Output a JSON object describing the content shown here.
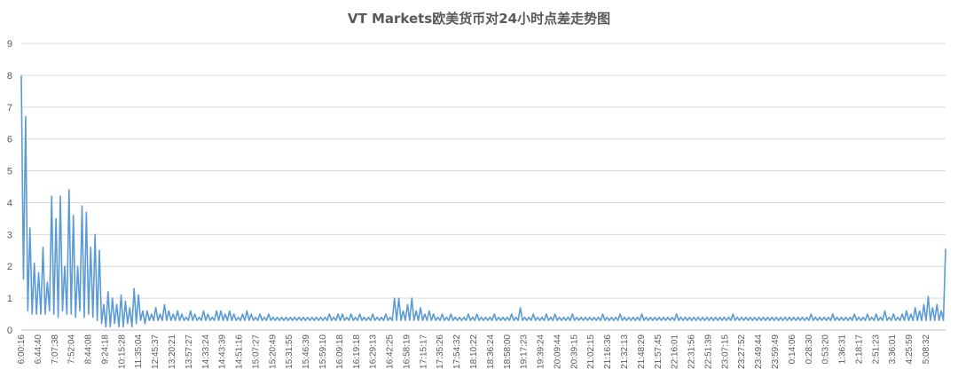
{
  "chart_data": {
    "type": "line",
    "title": "VT Markets欧美货币对24小时点差走势图",
    "xlabel": "",
    "ylabel": "",
    "ylim": [
      0,
      9
    ],
    "y_ticks": [
      0,
      1,
      2,
      3,
      4,
      5,
      6,
      7,
      8,
      9
    ],
    "grid": "horizontal",
    "legend": "none",
    "x_tick_labels": [
      "6:00:16",
      "6:44:40",
      "7:07:38",
      "7:52:04",
      "8:44:08",
      "9:24:18",
      "10:15:28",
      "11:35:04",
      "12:45:37",
      "13:20:21",
      "13:57:27",
      "14:33:24",
      "14:43:39",
      "14:51:16",
      "15:07:27",
      "15:20:49",
      "15:31:55",
      "15:46:39",
      "15:59:10",
      "16:09:18",
      "16:19:18",
      "16:29:13",
      "16:42:25",
      "16:58:19",
      "17:15:17",
      "17:35:26",
      "17:54:32",
      "18:10:22",
      "18:36:24",
      "18:58:00",
      "19:17:23",
      "19:39:24",
      "20:09:44",
      "20:39:15",
      "21:02:15",
      "21:16:36",
      "21:32:13",
      "21:48:29",
      "21:57:45",
      "22:16:01",
      "22:31:56",
      "22:51:39",
      "23:07:15",
      "23:27:52",
      "23:49:44",
      "23:59:49",
      "0:14:06",
      "0:28:30",
      "0:53:20",
      "1:36:31",
      "2:18:17",
      "2:51:23",
      "3:36:01",
      "4:25:59",
      "5:08:32"
    ],
    "series": [
      {
        "color": "#5B9BD5",
        "values": [
          8.0,
          1.6,
          6.7,
          0.6,
          3.2,
          0.5,
          2.1,
          0.5,
          1.8,
          0.5,
          2.6,
          0.5,
          1.5,
          0.6,
          4.2,
          0.5,
          3.5,
          0.4,
          4.2,
          0.6,
          2.0,
          0.5,
          4.4,
          0.5,
          3.6,
          0.4,
          2.0,
          0.6,
          3.9,
          0.4,
          3.7,
          0.5,
          2.6,
          0.4,
          3.0,
          0.3,
          2.5,
          0.2,
          0.8,
          0.1,
          1.2,
          0.1,
          1.0,
          0.2,
          0.8,
          0.1,
          1.1,
          0.1,
          0.9,
          0.2,
          0.7,
          0.1,
          1.3,
          0.2,
          1.1,
          0.3,
          0.6,
          0.2,
          0.6,
          0.3,
          0.5,
          0.3,
          0.7,
          0.3,
          0.5,
          0.3,
          0.8,
          0.3,
          0.6,
          0.3,
          0.5,
          0.3,
          0.6,
          0.3,
          0.5,
          0.3,
          0.4,
          0.3,
          0.6,
          0.3,
          0.5,
          0.3,
          0.4,
          0.3,
          0.6,
          0.3,
          0.5,
          0.3,
          0.4,
          0.3,
          0.6,
          0.3,
          0.6,
          0.3,
          0.5,
          0.3,
          0.6,
          0.3,
          0.5,
          0.3,
          0.4,
          0.3,
          0.5,
          0.3,
          0.6,
          0.3,
          0.5,
          0.3,
          0.4,
          0.3,
          0.5,
          0.3,
          0.4,
          0.3,
          0.5,
          0.3,
          0.4,
          0.3,
          0.4,
          0.3,
          0.4,
          0.3,
          0.4,
          0.3,
          0.4,
          0.3,
          0.4,
          0.3,
          0.4,
          0.3,
          0.4,
          0.3,
          0.4,
          0.3,
          0.4,
          0.3,
          0.4,
          0.3,
          0.4,
          0.3,
          0.4,
          0.3,
          0.5,
          0.3,
          0.4,
          0.3,
          0.5,
          0.3,
          0.5,
          0.3,
          0.4,
          0.3,
          0.5,
          0.3,
          0.4,
          0.3,
          0.5,
          0.3,
          0.4,
          0.3,
          0.4,
          0.3,
          0.5,
          0.3,
          0.4,
          0.3,
          0.4,
          0.3,
          0.5,
          0.3,
          0.4,
          0.3,
          1.0,
          0.3,
          1.0,
          0.3,
          0.6,
          0.3,
          0.8,
          0.3,
          1.0,
          0.3,
          0.6,
          0.3,
          0.7,
          0.3,
          0.5,
          0.3,
          0.6,
          0.3,
          0.5,
          0.3,
          0.4,
          0.3,
          0.5,
          0.3,
          0.4,
          0.3,
          0.5,
          0.3,
          0.4,
          0.3,
          0.4,
          0.3,
          0.4,
          0.3,
          0.5,
          0.3,
          0.4,
          0.3,
          0.5,
          0.3,
          0.4,
          0.3,
          0.4,
          0.3,
          0.4,
          0.3,
          0.5,
          0.3,
          0.4,
          0.3,
          0.4,
          0.3,
          0.4,
          0.3,
          0.5,
          0.3,
          0.4,
          0.3,
          0.7,
          0.3,
          0.4,
          0.3,
          0.4,
          0.3,
          0.5,
          0.3,
          0.4,
          0.3,
          0.4,
          0.3,
          0.5,
          0.3,
          0.4,
          0.3,
          0.5,
          0.3,
          0.4,
          0.3,
          0.4,
          0.3,
          0.4,
          0.3,
          0.5,
          0.3,
          0.4,
          0.3,
          0.4,
          0.3,
          0.4,
          0.3,
          0.4,
          0.3,
          0.4,
          0.3,
          0.4,
          0.3,
          0.5,
          0.3,
          0.4,
          0.3,
          0.4,
          0.3,
          0.4,
          0.3,
          0.5,
          0.3,
          0.4,
          0.3,
          0.4,
          0.3,
          0.4,
          0.3,
          0.4,
          0.3,
          0.5,
          0.3,
          0.4,
          0.3,
          0.4,
          0.3,
          0.4,
          0.3,
          0.4,
          0.3,
          0.4,
          0.3,
          0.4,
          0.3,
          0.4,
          0.3,
          0.5,
          0.3,
          0.4,
          0.3,
          0.4,
          0.3,
          0.4,
          0.3,
          0.4,
          0.3,
          0.4,
          0.3,
          0.4,
          0.3,
          0.4,
          0.3,
          0.4,
          0.3,
          0.4,
          0.3,
          0.4,
          0.3,
          0.4,
          0.3,
          0.4,
          0.3,
          0.5,
          0.3,
          0.4,
          0.3,
          0.4,
          0.3,
          0.4,
          0.3,
          0.4,
          0.3,
          0.4,
          0.3,
          0.4,
          0.3,
          0.4,
          0.3,
          0.4,
          0.3,
          0.4,
          0.3,
          0.4,
          0.3,
          0.4,
          0.3,
          0.4,
          0.3,
          0.4,
          0.3,
          0.4,
          0.3,
          0.4,
          0.3,
          0.4,
          0.3,
          0.4,
          0.3,
          0.5,
          0.3,
          0.4,
          0.3,
          0.4,
          0.3,
          0.4,
          0.3,
          0.4,
          0.3,
          0.5,
          0.3,
          0.4,
          0.3,
          0.4,
          0.3,
          0.4,
          0.3,
          0.4,
          0.3,
          0.5,
          0.3,
          0.4,
          0.3,
          0.4,
          0.3,
          0.5,
          0.3,
          0.4,
          0.3,
          0.5,
          0.3,
          0.4,
          0.3,
          0.6,
          0.3,
          0.4,
          0.3,
          0.5,
          0.3,
          0.4,
          0.3,
          0.5,
          0.3,
          0.6,
          0.3,
          0.5,
          0.3,
          0.7,
          0.3,
          0.6,
          0.3,
          0.8,
          0.3,
          1.05,
          0.3,
          0.7,
          0.3,
          0.8,
          0.3,
          0.6,
          0.3,
          2.55
        ]
      }
    ]
  }
}
